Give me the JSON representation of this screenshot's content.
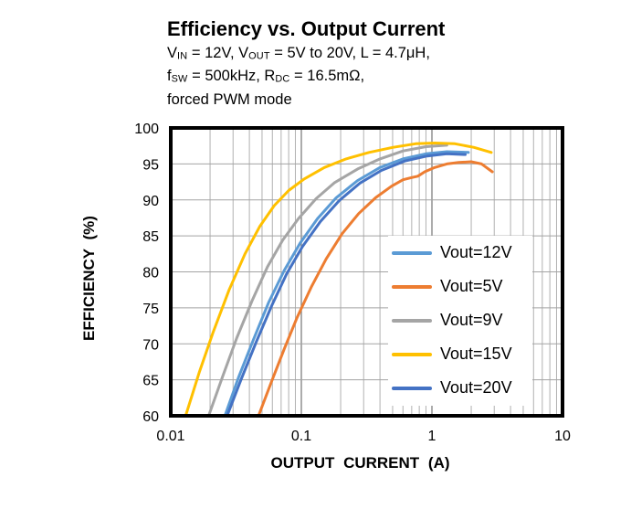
{
  "title": "Efficiency vs. Output Current",
  "conditions": {
    "line1": [
      {
        "t": "V"
      },
      {
        "t": "IN",
        "sub": true
      },
      {
        "t": " = 12V, V"
      },
      {
        "t": "OUT",
        "sub": true
      },
      {
        "t": " = 5V to 20V, L = 4.7μH,"
      }
    ],
    "line2": [
      {
        "t": "f"
      },
      {
        "t": "SW",
        "sub": true
      },
      {
        "t": " = 500kHz, R"
      },
      {
        "t": "DC",
        "sub": true
      },
      {
        "t": " = 16.5mΩ,"
      }
    ],
    "line3": [
      {
        "t": "forced PWM mode"
      }
    ]
  },
  "chart_data": {
    "type": "line",
    "title": "Efficiency vs. Output Current",
    "xlabel": "OUTPUT CURRENT  (A)",
    "ylabel": "EFFICIENCY  (%)",
    "x_scale": "log",
    "xlim": [
      0.01,
      10
    ],
    "ylim": [
      60,
      100
    ],
    "x_ticks": [
      0.01,
      0.1,
      1,
      10
    ],
    "x_tick_labels": [
      "0.01",
      "0.1",
      "1",
      "10"
    ],
    "y_ticks": [
      60,
      65,
      70,
      75,
      80,
      85,
      90,
      95,
      100
    ],
    "y_tick_labels": [
      "60",
      "65",
      "70",
      "75",
      "80",
      "85",
      "90",
      "95",
      "100"
    ],
    "grid": "both",
    "legend_position": "inside-right",
    "colors": {
      "grid_minor": "#b0b0b0",
      "grid_major": "#7f7f7f",
      "grid_horizontal": "#a3a3a3",
      "plot_border": "#000000"
    },
    "series": [
      {
        "name": "Vout=12V",
        "color": "#5B9BD5",
        "points": [
          [
            0.026,
            60
          ],
          [
            0.033,
            65.3
          ],
          [
            0.043,
            70.6
          ],
          [
            0.056,
            75.7
          ],
          [
            0.074,
            80.2
          ],
          [
            0.098,
            84.0
          ],
          [
            0.133,
            87.4
          ],
          [
            0.185,
            90.3
          ],
          [
            0.27,
            92.7
          ],
          [
            0.4,
            94.5
          ],
          [
            0.6,
            95.7
          ],
          [
            0.9,
            96.4
          ],
          [
            1.3,
            96.7
          ],
          [
            1.9,
            96.6
          ]
        ]
      },
      {
        "name": "Vout=5V",
        "color": "#ED7D31",
        "points": [
          [
            0.047,
            60
          ],
          [
            0.059,
            64.7
          ],
          [
            0.074,
            69.3
          ],
          [
            0.093,
            73.7
          ],
          [
            0.12,
            78.0
          ],
          [
            0.155,
            81.8
          ],
          [
            0.205,
            85.3
          ],
          [
            0.275,
            88.1
          ],
          [
            0.37,
            90.3
          ],
          [
            0.49,
            91.9
          ],
          [
            0.6,
            92.8
          ],
          [
            0.7,
            93.1
          ],
          [
            0.78,
            93.3
          ],
          [
            0.88,
            93.9
          ],
          [
            1.05,
            94.5
          ],
          [
            1.3,
            95.0
          ],
          [
            1.6,
            95.2
          ],
          [
            2.0,
            95.3
          ],
          [
            2.4,
            95.0
          ],
          [
            2.9,
            93.9
          ]
        ]
      },
      {
        "name": "Vout=9V",
        "color": "#A5A5A5",
        "points": [
          [
            0.0195,
            60
          ],
          [
            0.025,
            65.5
          ],
          [
            0.032,
            70.8
          ],
          [
            0.042,
            76.0
          ],
          [
            0.055,
            80.7
          ],
          [
            0.072,
            84.4
          ],
          [
            0.095,
            87.4
          ],
          [
            0.13,
            90.2
          ],
          [
            0.18,
            92.4
          ],
          [
            0.27,
            94.3
          ],
          [
            0.4,
            95.7
          ],
          [
            0.6,
            96.8
          ],
          [
            0.9,
            97.4
          ],
          [
            1.3,
            97.6
          ]
        ]
      },
      {
        "name": "Vout=15V",
        "color": "#FFC000",
        "points": [
          [
            0.013,
            60
          ],
          [
            0.0165,
            66
          ],
          [
            0.021,
            71.5
          ],
          [
            0.028,
            77.5
          ],
          [
            0.037,
            82.5
          ],
          [
            0.048,
            86.3
          ],
          [
            0.062,
            89.2
          ],
          [
            0.08,
            91.3
          ],
          [
            0.105,
            92.9
          ],
          [
            0.15,
            94.5
          ],
          [
            0.22,
            95.7
          ],
          [
            0.33,
            96.6
          ],
          [
            0.5,
            97.3
          ],
          [
            0.75,
            97.8
          ],
          [
            1.05,
            97.9
          ],
          [
            1.5,
            97.8
          ],
          [
            2.1,
            97.3
          ],
          [
            2.85,
            96.6
          ]
        ]
      },
      {
        "name": "Vout=20V",
        "color": "#4472C4",
        "points": [
          [
            0.027,
            60
          ],
          [
            0.0345,
            65
          ],
          [
            0.045,
            70.2
          ],
          [
            0.059,
            75.2
          ],
          [
            0.077,
            79.7
          ],
          [
            0.102,
            83.5
          ],
          [
            0.14,
            87.0
          ],
          [
            0.195,
            89.9
          ],
          [
            0.28,
            92.3
          ],
          [
            0.41,
            94.1
          ],
          [
            0.62,
            95.4
          ],
          [
            0.92,
            96.1
          ],
          [
            1.3,
            96.4
          ],
          [
            1.8,
            96.3
          ]
        ]
      }
    ]
  }
}
